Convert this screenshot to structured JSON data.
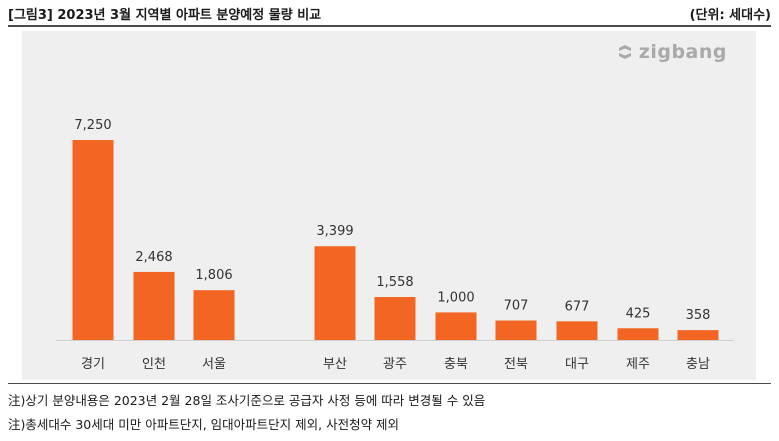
{
  "header": {
    "title": "[그림3] 2023년 3월 지역별 아파트 분양예정 물량 비교",
    "unit": "(단위: 세대수)"
  },
  "brand": {
    "logo_text": "zigbang",
    "icon": "zigbang-logo-icon"
  },
  "colors": {
    "bar": "#f26522",
    "panel": "#efefef",
    "rule": "#4a4a4a",
    "logo": "#a9a9a9"
  },
  "chart_data": {
    "type": "bar",
    "title": "[그림3] 2023년 3월 지역별 아파트 분양예정 물량 비교",
    "unit": "(단위: 세대수)",
    "groups": [
      [
        "경기",
        "인천",
        "서울"
      ],
      [
        "부산",
        "광주",
        "충북",
        "전북",
        "대구",
        "제주",
        "충남"
      ]
    ],
    "categories": [
      "경기",
      "인천",
      "서울",
      "부산",
      "광주",
      "충북",
      "전북",
      "대구",
      "제주",
      "충남"
    ],
    "values": [
      7250,
      2468,
      1806,
      3399,
      1558,
      1000,
      707,
      677,
      425,
      358
    ],
    "labels": [
      "7,250",
      "2,468",
      "1,806",
      "3,399",
      "1,558",
      "1,000",
      "707",
      "677",
      "425",
      "358"
    ],
    "ylim": [
      0,
      7250
    ],
    "grid": false,
    "legend": "none"
  },
  "notes": [
    "注)상기 분양내용은 2023년 2월 28일 조사기준으로 공급자 사정 등에 따라 변경될 수 있음",
    "注)총세대수 30세대 미만 아파트단지, 임대아파트단지 제외, 사전청약 제외"
  ]
}
